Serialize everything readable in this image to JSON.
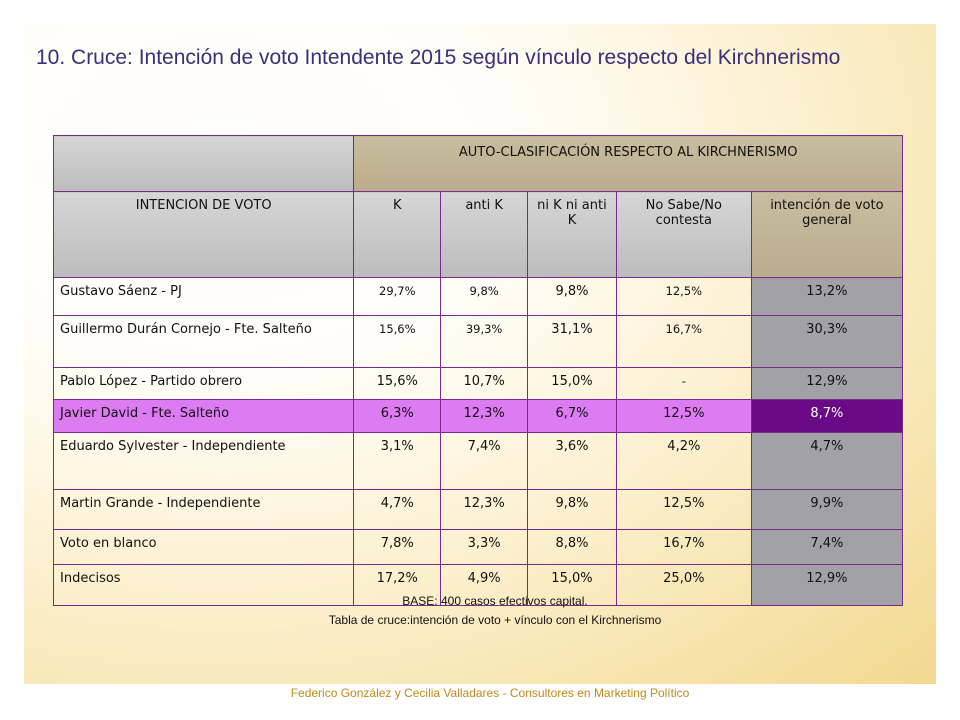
{
  "slide_title": "10. Cruce: Intención de voto Intendente 2015 según vínculo respecto del Kirchnerismo",
  "table": {
    "group_header": "AUTO-CLASIFICACIÓN RESPECTO AL KIRCHNERISMO",
    "columns": [
      "INTENCION DE VOTO",
      "K",
      "anti K",
      "ni K ni anti K",
      "No Sabe/No contesta",
      "intención de voto general"
    ],
    "rows": [
      {
        "name": "Gustavo Sáenz - PJ",
        "values": [
          "29,7%",
          "9,8%",
          "9,8%",
          "12,5%",
          "13,2%"
        ]
      },
      {
        "name": "Guillermo Durán Cornejo - Fte. Salteño",
        "values": [
          "15,6%",
          "39,3%",
          "31,1%",
          "16,7%",
          "30,3%"
        ]
      },
      {
        "name": "Pablo López - Partido obrero",
        "values": [
          "15,6%",
          "10,7%",
          "15,0%",
          "-",
          "12,9%"
        ]
      },
      {
        "name": "Javier David - Fte. Salteño",
        "values": [
          "6,3%",
          "12,3%",
          "6,7%",
          "12,5%",
          "8,7%"
        ]
      },
      {
        "name": "Eduardo Sylvester - Independiente",
        "values": [
          "3,1%",
          "7,4%",
          "3,6%",
          "4,2%",
          "4,7%"
        ]
      },
      {
        "name": "Martin Grande - Independiente",
        "values": [
          "4,7%",
          "12,3%",
          "9,8%",
          "12,5%",
          "9,9%"
        ]
      },
      {
        "name": "Voto en blanco",
        "values": [
          "7,8%",
          "3,3%",
          "8,8%",
          "16,7%",
          "7,4%"
        ]
      },
      {
        "name": "Indecisos",
        "values": [
          "17,2%",
          "4,9%",
          "15,0%",
          "25,0%",
          "12,9%"
        ]
      }
    ]
  },
  "notes": {
    "base": "BASE: 400 casos efectivos capital.",
    "caption": "Tabla de cruce:intención de voto + vínculo con el Kirchnerismo"
  },
  "footer": "Federico González y Cecilia Valladares - Consultores en Marketing Político",
  "colors": {
    "highlight_row": "#dd7bf2",
    "highlight_general": "#6a0a86",
    "general_column": "#a2a2a6",
    "header_khaki": "#c9bda0",
    "border": "#7a2a8a",
    "title": "#3a2f7a",
    "footer": "#c08a18"
  }
}
